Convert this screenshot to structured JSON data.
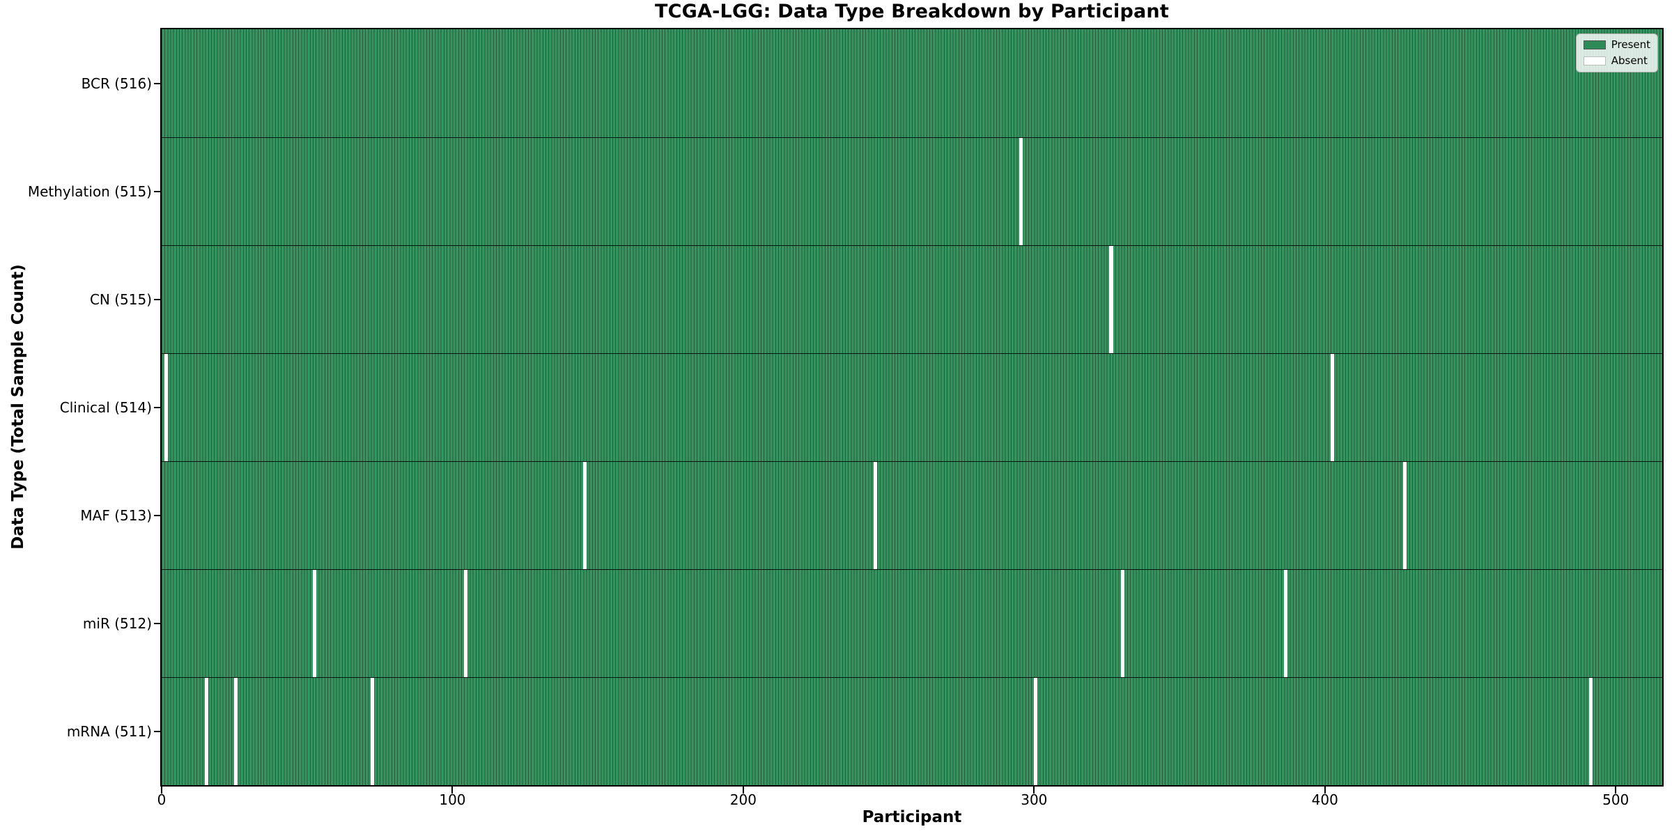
{
  "title": "TCGA-LGG: Data Type Breakdown by Participant",
  "legend": {
    "present": "Present",
    "absent": "Absent"
  },
  "colors": {
    "present": "#2e8b57",
    "absent": "#ffffff",
    "bar_fill": "#38945f",
    "bar_edge": "#245b40",
    "row_divider": "rgba(0,0,0,0.85)",
    "axis": "#000000",
    "legend_absent_edge": "#bbbbbb",
    "legend_present_edge": "#555555"
  },
  "chart_data": {
    "type": "heatmap",
    "title": "TCGA-LGG: Data Type Breakdown by Participant",
    "xlabel": "Participant",
    "ylabel": "Data Type (Total Sample Count)",
    "xlim": [
      0,
      516
    ],
    "x_ticks": [
      0,
      100,
      200,
      300,
      400,
      500
    ],
    "total_participants": 516,
    "grid": false,
    "legend_position": "upper right",
    "legend_entries": [
      {
        "label": "Present",
        "color": "#2e8b57"
      },
      {
        "label": "Absent",
        "color": "#ffffff"
      }
    ],
    "value_encoding": "green bar = data present for participant, white gap = data absent",
    "rows": [
      {
        "data_type": "BCR",
        "label": "BCR (516)",
        "present_count": 516,
        "absent_participants": []
      },
      {
        "data_type": "Methylation",
        "label": "Methylation (515)",
        "present_count": 515,
        "absent_participants": [
          295
        ]
      },
      {
        "data_type": "CN",
        "label": "CN (515)",
        "present_count": 515,
        "absent_participants": [
          326
        ]
      },
      {
        "data_type": "Clinical",
        "label": "Clinical (514)",
        "present_count": 514,
        "absent_participants": [
          1,
          402
        ]
      },
      {
        "data_type": "MAF",
        "label": "MAF (513)",
        "present_count": 513,
        "absent_participants": [
          145,
          245,
          427
        ]
      },
      {
        "data_type": "miR",
        "label": "miR (512)",
        "present_count": 512,
        "absent_participants": [
          52,
          104,
          330,
          386
        ]
      },
      {
        "data_type": "mRNA",
        "label": "mRNA (511)",
        "present_count": 511,
        "absent_participants": [
          15,
          25,
          72,
          300,
          491
        ]
      }
    ]
  }
}
